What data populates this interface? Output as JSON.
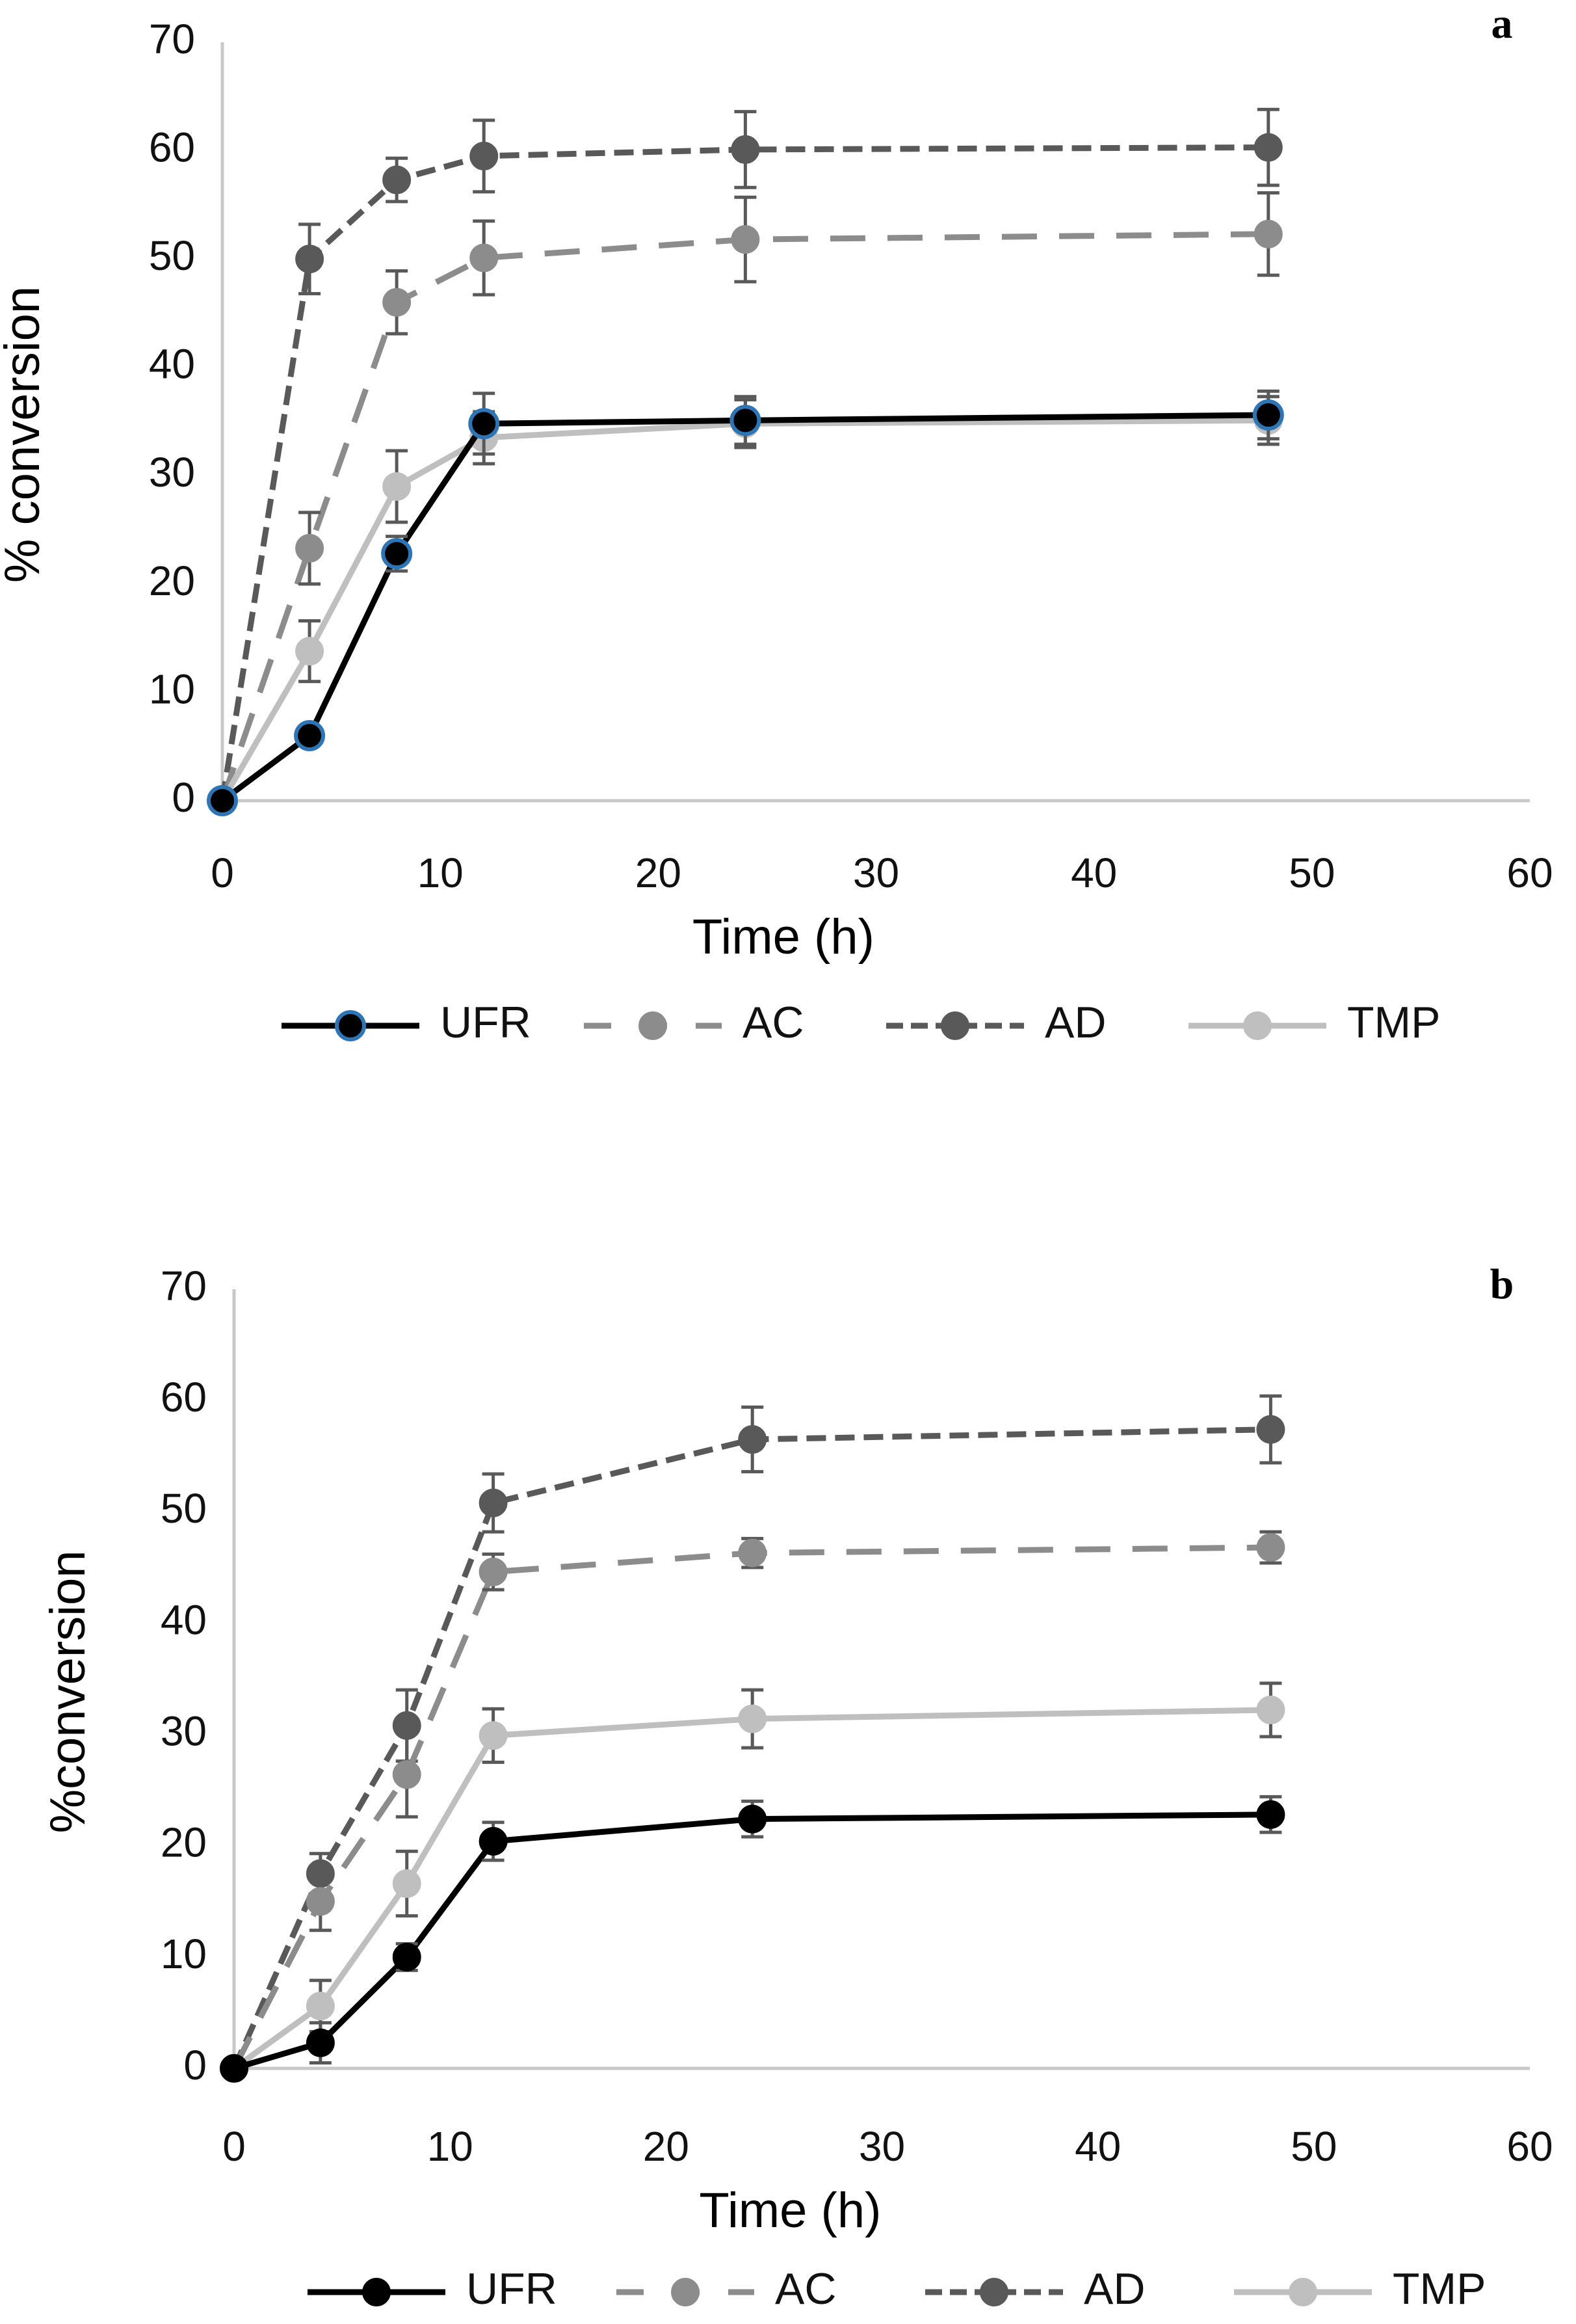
{
  "chart_data": [
    {
      "type": "line",
      "panel_label": "a",
      "xlabel": "Time (h)",
      "ylabel": "% conversion",
      "xlim": [
        0,
        60
      ],
      "ylim": [
        0,
        70
      ],
      "x_ticks": [
        "0",
        "10",
        "20",
        "30",
        "40",
        "50",
        "60"
      ],
      "y_ticks": [
        "0",
        "10",
        "20",
        "30",
        "40",
        "50",
        "60",
        "70"
      ],
      "grid": false,
      "legend_position": "bottom",
      "series": [
        {
          "name": "UFR",
          "x": [
            0,
            4,
            8,
            12,
            24,
            48
          ],
          "y": [
            0,
            6,
            22.8,
            34.8,
            35.1,
            35.6
          ],
          "err": [
            0,
            0,
            1.6,
            2.8,
            2.2,
            2.2
          ],
          "color": "#000000",
          "marker_fill": "#000000",
          "marker_stroke": "#2e75b6",
          "line_style": "solid"
        },
        {
          "name": "AC",
          "x": [
            0,
            4,
            8,
            12,
            24,
            48
          ],
          "y": [
            0,
            23.3,
            46,
            50.1,
            51.8,
            52.3
          ],
          "err": [
            0,
            3.3,
            2.9,
            3.4,
            3.9,
            3.8
          ],
          "color": "#8c8c8c",
          "marker_fill": "#8c8c8c",
          "marker_stroke": "#8c8c8c",
          "line_style": "dashed"
        },
        {
          "name": "AD",
          "x": [
            0,
            4,
            8,
            12,
            24,
            48
          ],
          "y": [
            0,
            50,
            57.3,
            59.5,
            60.1,
            60.3
          ],
          "err": [
            0,
            3.2,
            2,
            3.3,
            3.5,
            3.5
          ],
          "color": "#595959",
          "marker_fill": "#595959",
          "marker_stroke": "#595959",
          "line_style": "dotdash"
        },
        {
          "name": "TMP",
          "x": [
            0,
            4,
            8,
            12,
            24,
            48
          ],
          "y": [
            0,
            13.8,
            29,
            33.5,
            34.8,
            35.1
          ],
          "err": [
            0,
            2.8,
            3.3,
            2.4,
            2.2,
            2.2
          ],
          "color": "#bfbfbf",
          "marker_fill": "#bfbfbf",
          "marker_stroke": "#bfbfbf",
          "line_style": "solid"
        }
      ]
    },
    {
      "type": "line",
      "panel_label": "b",
      "xlabel": "Time (h)",
      "ylabel": "%conversion",
      "xlim": [
        0,
        60
      ],
      "ylim": [
        0,
        70
      ],
      "x_ticks": [
        "0",
        "10",
        "20",
        "30",
        "40",
        "50",
        "60"
      ],
      "y_ticks": [
        "0",
        "10",
        "20",
        "30",
        "40",
        "50",
        "60",
        "70"
      ],
      "grid": false,
      "legend_position": "bottom",
      "series": [
        {
          "name": "UFR",
          "x": [
            0,
            4,
            8,
            12,
            24,
            48
          ],
          "y": [
            0,
            2.3,
            10,
            20.4,
            22.4,
            22.8
          ],
          "err": [
            0,
            1.8,
            1.2,
            1.7,
            1.6,
            1.6
          ],
          "color": "#000000",
          "marker_fill": "#000000",
          "marker_stroke": "#000000",
          "line_style": "solid"
        },
        {
          "name": "AC",
          "x": [
            0,
            4,
            8,
            12,
            24,
            48
          ],
          "y": [
            0,
            15,
            26.4,
            44.6,
            46.3,
            46.8
          ],
          "err": [
            0,
            2.6,
            3.8,
            1.6,
            1.3,
            1.4
          ],
          "color": "#8c8c8c",
          "marker_fill": "#8c8c8c",
          "marker_stroke": "#8c8c8c",
          "line_style": "dashed"
        },
        {
          "name": "AD",
          "x": [
            0,
            4,
            8,
            12,
            24,
            48
          ],
          "y": [
            0,
            17.5,
            30.8,
            50.8,
            56.5,
            57.4
          ],
          "err": [
            0,
            1.8,
            3.2,
            2.6,
            2.9,
            3
          ],
          "color": "#595959",
          "marker_fill": "#595959",
          "marker_stroke": "#595959",
          "line_style": "dotdash"
        },
        {
          "name": "TMP",
          "x": [
            0,
            4,
            8,
            12,
            24,
            48
          ],
          "y": [
            0,
            5.6,
            16.6,
            29.9,
            31.4,
            32.2
          ],
          "err": [
            0,
            2.3,
            2.9,
            2.4,
            2.6,
            2.4
          ],
          "color": "#bfbfbf",
          "marker_fill": "#bfbfbf",
          "marker_stroke": "#bfbfbf",
          "line_style": "solid"
        }
      ]
    }
  ]
}
